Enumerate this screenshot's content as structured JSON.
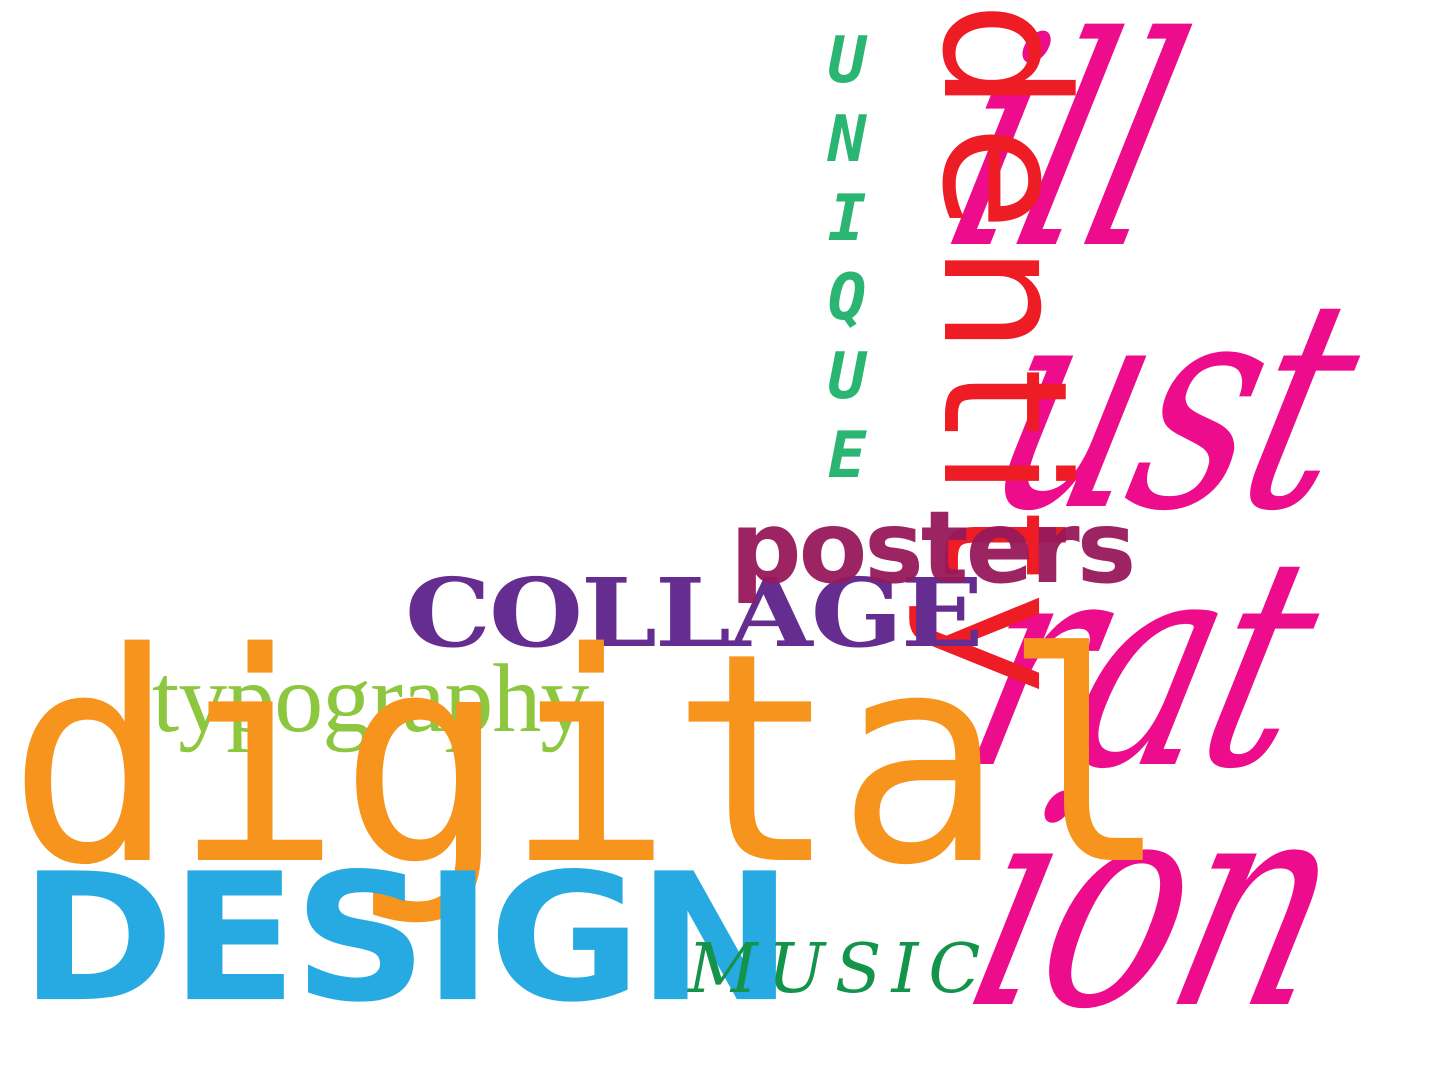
{
  "canvas": {
    "background": "#ffffff"
  },
  "words": {
    "illustration": {
      "rows": [
        "ill",
        "ust",
        "rat",
        "ion"
      ],
      "color": "#ec0c8c"
    },
    "identity": {
      "text": "identity",
      "color": "#ee1c24"
    },
    "unique": {
      "text": "UNIQUE",
      "color": "#2ab573"
    },
    "posters": {
      "text": "posters",
      "color": "#97195a"
    },
    "collage": {
      "text": "COLLAGE",
      "color": "#662d91"
    },
    "typography": {
      "text": "typography",
      "color": "#8dc63f"
    },
    "digital": {
      "text": "digital",
      "color": "#f7941d"
    },
    "design": {
      "text": "DESIGN",
      "color": "#27aae1"
    },
    "music": {
      "text": "MUSIC",
      "color": "#13944a"
    }
  }
}
